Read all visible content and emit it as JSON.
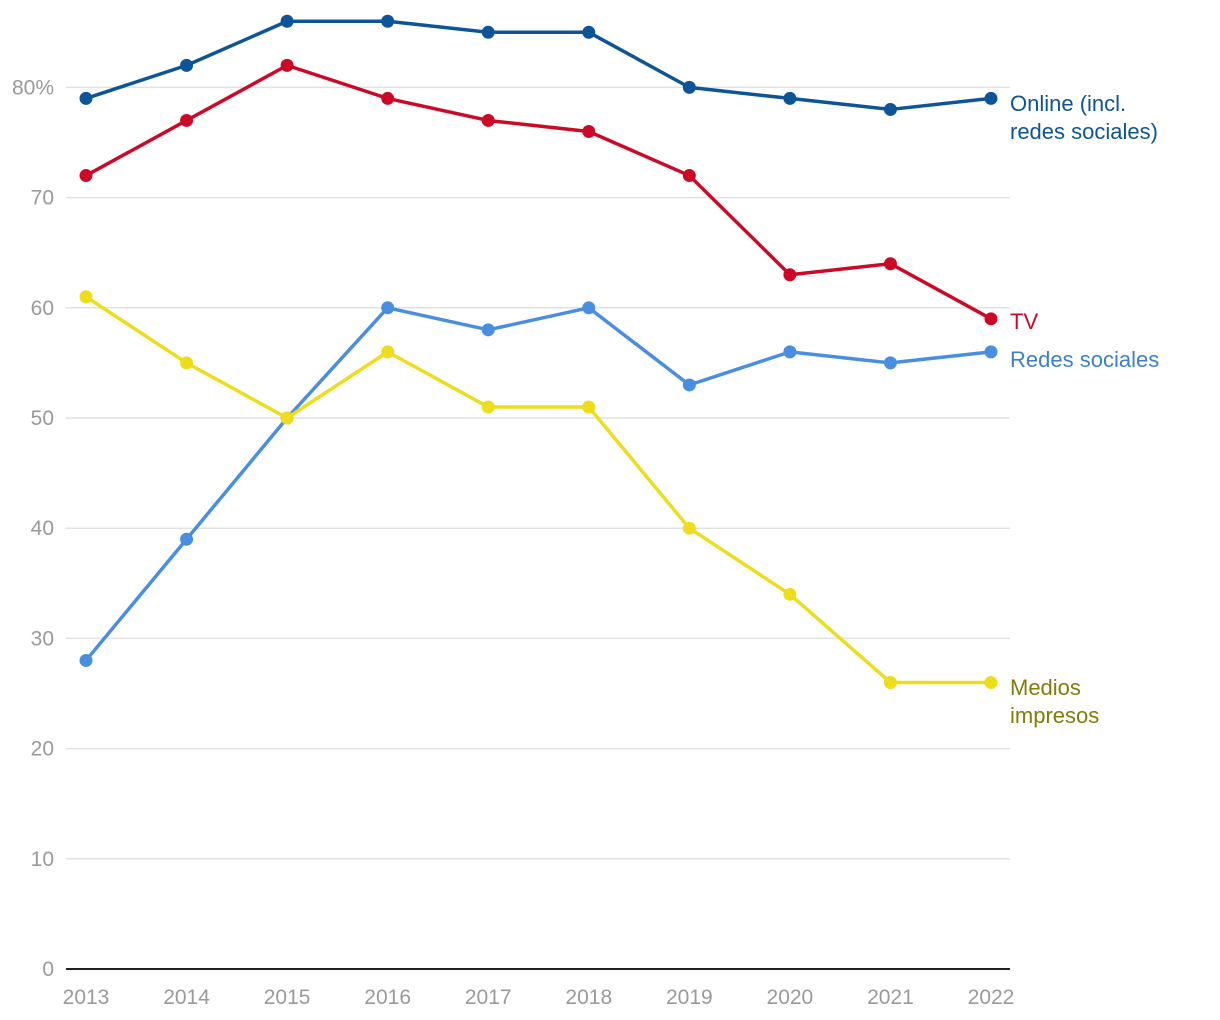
{
  "chart_data": {
    "type": "line",
    "title": "",
    "xlabel": "",
    "ylabel": "",
    "x": [
      "2013",
      "2014",
      "2015",
      "2016",
      "2017",
      "2018",
      "2019",
      "2020",
      "2021",
      "2022"
    ],
    "ylim": [
      0,
      85
    ],
    "y_ticks": [
      0,
      10,
      20,
      30,
      40,
      50,
      60,
      70,
      80
    ],
    "y_tick_labels": [
      "0",
      "10",
      "20",
      "30",
      "40",
      "50",
      "60",
      "70",
      "80%"
    ],
    "grid": true,
    "legend": "inline-right",
    "series": [
      {
        "name": "Online (incl. redes sociales)",
        "label_lines": [
          "Online (incl.",
          "redes sociales)"
        ],
        "color": "#0d5596",
        "label_color": "#0d5596",
        "values": [
          79,
          82,
          86,
          86,
          85,
          85,
          80,
          79,
          78,
          79
        ]
      },
      {
        "name": "TV",
        "label_lines": [
          "TV"
        ],
        "color": "#cc0a28",
        "label_color": "#cc0a28",
        "values": [
          72,
          77,
          82,
          79,
          77,
          76,
          72,
          63,
          64,
          59
        ]
      },
      {
        "name": "Redes sociales",
        "label_lines": [
          "Redes sociales"
        ],
        "color": "#4a8fdf",
        "label_color": "#3d7fcf",
        "values": [
          28,
          39,
          50,
          60,
          58,
          60,
          53,
          56,
          55,
          56
        ]
      },
      {
        "name": "Medios impresos",
        "label_lines": [
          "Medios",
          "impresos"
        ],
        "color": "#eedd1c",
        "label_color": "#847c08",
        "values": [
          61,
          55,
          50,
          56,
          51,
          51,
          40,
          34,
          26,
          26
        ]
      }
    ]
  }
}
